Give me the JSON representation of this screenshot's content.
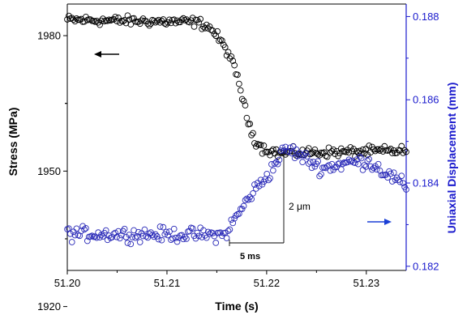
{
  "chart_data": {
    "type": "scatter",
    "xlabel": "Time (s)",
    "y_left_label": "Stress (MPa)",
    "y_right_label": "Uniaxial Displacement (mm)",
    "xlim": [
      51.2,
      51.234
    ],
    "ylim_left": [
      1928,
      1987
    ],
    "ylim_right": [
      0.1819,
      0.1883
    ],
    "x_ticks": [
      "51.20",
      "51.21",
      "51.22",
      "51.23"
    ],
    "y_left_ticks": [
      "1920",
      "1950",
      "1980"
    ],
    "y_right_ticks": [
      "0.182",
      "0.184",
      "0.186",
      "0.188"
    ],
    "grid": false,
    "series": [
      {
        "axis": "left",
        "color": "#000000",
        "marker": "open-circle",
        "curve": {
          "segments": [
            [
              51.2,
              1983.5
            ],
            [
              51.213,
              1983
            ],
            [
              51.2142,
              1982
            ],
            [
              51.215,
              1980
            ],
            [
              51.2162,
              1976
            ],
            [
              51.2172,
              1970
            ],
            [
              51.218,
              1962
            ],
            [
              51.2188,
              1957
            ],
            [
              51.2196,
              1955
            ],
            [
              51.2212,
              1954
            ],
            [
              51.234,
              1954.5
            ]
          ],
          "n_points": 220,
          "noise": 0.9
        }
      },
      {
        "axis": "right",
        "color": "#2a2ab8",
        "marker": "open-circle",
        "curve": {
          "segments": [
            [
              51.2,
              0.18278
            ],
            [
              51.2158,
              0.18275
            ],
            [
              51.217,
              0.1832
            ],
            [
              51.2185,
              0.18375
            ],
            [
              51.2203,
              0.18425
            ],
            [
              51.2218,
              0.1848
            ],
            [
              51.2225,
              0.18478
            ],
            [
              51.2255,
              0.18435
            ],
            [
              51.2285,
              0.1845
            ],
            [
              51.2302,
              0.18452
            ],
            [
              51.2322,
              0.1842
            ],
            [
              51.234,
              0.1839
            ]
          ],
          "n_points": 220,
          "noise": 0.00014
        }
      }
    ],
    "annotations": {
      "time_span_label": "5 ms",
      "displacement_label_prefix": "2 ",
      "displacement_label_unit": "μm",
      "left_arrow_color": "#000000",
      "right_arrow_color": "#1a3fd6",
      "right_axis_color": "#1a1acd"
    }
  }
}
